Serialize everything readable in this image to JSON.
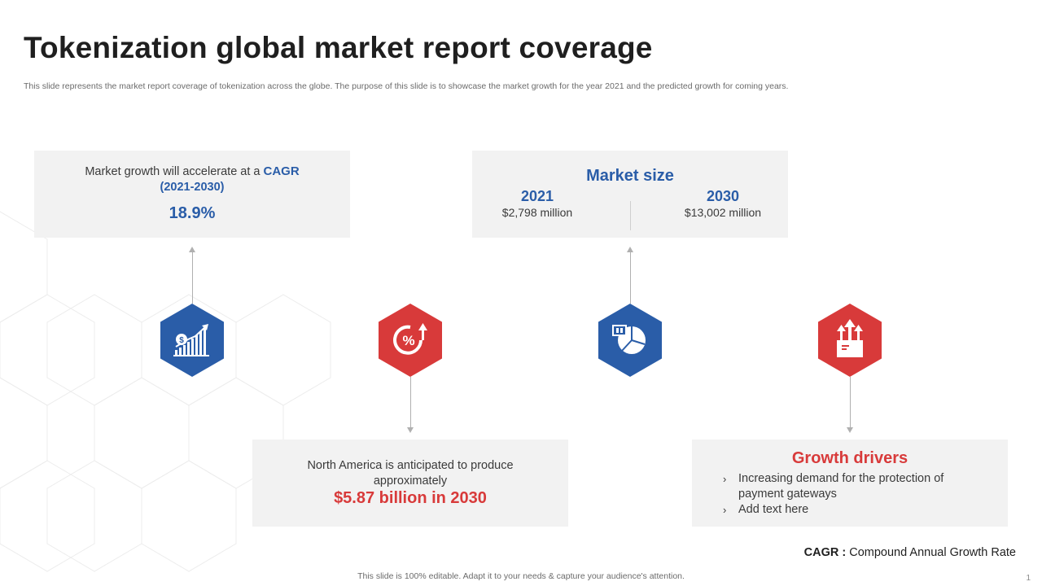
{
  "title": "Tokenization global market report coverage",
  "subtitle": "This slide represents the market report coverage of tokenization across the globe. The purpose of this slide is to showcase the market growth for the year 2021 and the predicted growth for coming years.",
  "cagr_box": {
    "text": "Market growth will accelerate at a",
    "accent": "CAGR",
    "years": "(2021-2030)",
    "value": "18.9%"
  },
  "market_box": {
    "title": "Market size",
    "left_year": "2021",
    "left_value": "$2,798 million",
    "right_year": "2030",
    "right_value": "$13,002 million"
  },
  "na_box": {
    "line1": "North America is anticipated to produce",
    "line2": "approximately",
    "value": "$5.87 billion in 2030"
  },
  "growth_box": {
    "title": "Growth drivers",
    "bullet": "›",
    "items": [
      "Increasing demand for the protection of payment gateways",
      "Add text here"
    ]
  },
  "icons": {
    "hex1": "dollar-growth-chart-icon",
    "hex2": "percent-growth-icon",
    "hex3": "market-pie-chart-icon",
    "hex4": "box-growth-arrows-icon"
  },
  "colors": {
    "accent_blue": "#2a5da8",
    "accent_red": "#d83a3a",
    "box_bg": "#f2f2f2"
  },
  "footnote": {
    "label": "CAGR :",
    "text": "Compound Annual Growth Rate"
  },
  "editable_note": "This slide is 100% editable. Adapt it to your needs & capture your audience's attention.",
  "page_number": "1"
}
